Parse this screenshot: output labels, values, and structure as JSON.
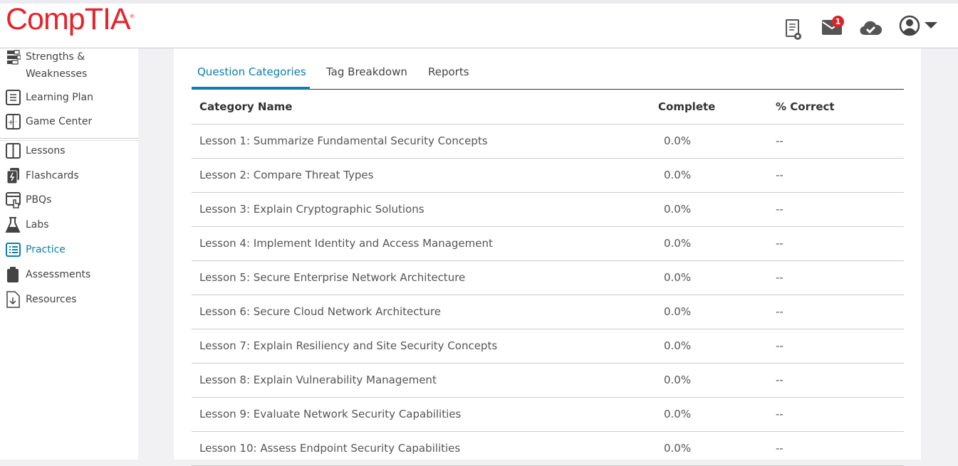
{
  "header": {
    "logo": "CompTIA",
    "mail_badge": "1",
    "icons": [
      "certificate-icon",
      "mail-icon",
      "cloud-check-icon",
      "user-avatar-icon",
      "caret-down-icon"
    ]
  },
  "sidebar": {
    "items": [
      {
        "label": "Strengths & Weaknesses",
        "icon": "bars-icon"
      },
      {
        "label": "Learning Plan",
        "icon": "plan-icon"
      },
      {
        "label": "Game Center",
        "icon": "game-icon"
      },
      {
        "label": "Lessons",
        "icon": "book-icon"
      },
      {
        "label": "Flashcards",
        "icon": "flashcards-icon"
      },
      {
        "label": "PBQs",
        "icon": "pbq-icon"
      },
      {
        "label": "Labs",
        "icon": "flask-icon"
      },
      {
        "label": "Practice",
        "icon": "list-icon",
        "active": true
      },
      {
        "label": "Assessments",
        "icon": "clipboard-icon"
      },
      {
        "label": "Resources",
        "icon": "download-file-icon"
      }
    ]
  },
  "tabs": [
    {
      "label": "Question Categories",
      "active": true
    },
    {
      "label": "Tag Breakdown"
    },
    {
      "label": "Reports"
    }
  ],
  "table": {
    "headers": [
      "Category Name",
      "Complete",
      "% Correct"
    ],
    "rows": [
      [
        "Lesson 1: Summarize Fundamental Security Concepts",
        "0.0%",
        "--"
      ],
      [
        "Lesson 2: Compare Threat Types",
        "0.0%",
        "--"
      ],
      [
        "Lesson 3: Explain Cryptographic Solutions",
        "0.0%",
        "--"
      ],
      [
        "Lesson 4: Implement Identity and Access Management",
        "0.0%",
        "--"
      ],
      [
        "Lesson 5: Secure Enterprise Network Architecture",
        "0.0%",
        "--"
      ],
      [
        "Lesson 6: Secure Cloud Network Architecture",
        "0.0%",
        "--"
      ],
      [
        "Lesson 7: Explain Resiliency and Site Security Concepts",
        "0.0%",
        "--"
      ],
      [
        "Lesson 8: Explain Vulnerability Management",
        "0.0%",
        "--"
      ],
      [
        "Lesson 9: Evaluate Network Security Capabilities",
        "0.0%",
        "--"
      ],
      [
        "Lesson 10: Assess Endpoint Security Capabilities",
        "0.0%",
        "--"
      ]
    ]
  },
  "colors": {
    "accent": "#0b7fab",
    "brand": "#e5242b",
    "badge": "#d9242b"
  }
}
